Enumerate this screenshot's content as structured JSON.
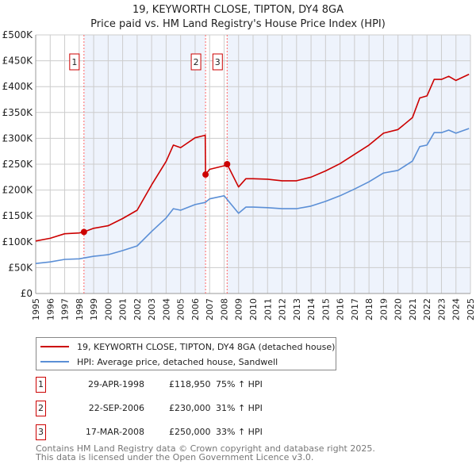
{
  "title": "19, KEYWORTH CLOSE, TIPTON, DY4 8GA",
  "subtitle": "Price paid vs. HM Land Registry's House Price Index (HPI)",
  "colors": {
    "property": "#cc0000",
    "hpi": "#5b8fd6",
    "shade": "#eef3fc",
    "grid": "#cccccc",
    "marker_line": "#ff6666"
  },
  "legend": {
    "property": "19, KEYWORTH CLOSE, TIPTON, DY4 8GA (detached house)",
    "hpi": "HPI: Average price, detached house, Sandwell"
  },
  "transactions": [
    {
      "id": "1",
      "date": "29-APR-1998",
      "price": "£118,950",
      "hpi": "75% ↑ HPI",
      "x": 1998.33,
      "value": 118950
    },
    {
      "id": "2",
      "date": "22-SEP-2006",
      "price": "£230,000",
      "hpi": "31% ↑ HPI",
      "x": 2006.72,
      "value": 230000
    },
    {
      "id": "3",
      "date": "17-MAR-2008",
      "price": "£250,000",
      "hpi": "33% ↑ HPI",
      "x": 2008.21,
      "value": 250000
    }
  ],
  "footer": {
    "line1": "Contains HM Land Registry data © Crown copyright and database right 2025.",
    "line2": "This data is licensed under the Open Government Licence v3.0."
  },
  "chart_data": {
    "type": "line",
    "title": "19, KEYWORTH CLOSE, TIPTON, DY4 8GA",
    "xlim": [
      1995,
      2025
    ],
    "ylim": [
      0,
      500000
    ],
    "grid": true,
    "x_ticks": [
      "1995",
      "1996",
      "1997",
      "1998",
      "1999",
      "2000",
      "2001",
      "2002",
      "2003",
      "2004",
      "2005",
      "2006",
      "2007",
      "2008",
      "2009",
      "2010",
      "2011",
      "2012",
      "2013",
      "2014",
      "2015",
      "2016",
      "2017",
      "2018",
      "2019",
      "2020",
      "2021",
      "2022",
      "2023",
      "2024",
      "2025"
    ],
    "y_ticks": [
      {
        "v": 0,
        "label": "£0"
      },
      {
        "v": 50000,
        "label": "£50K"
      },
      {
        "v": 100000,
        "label": "£100K"
      },
      {
        "v": 150000,
        "label": "£150K"
      },
      {
        "v": 200000,
        "label": "£200K"
      },
      {
        "v": 250000,
        "label": "£250K"
      },
      {
        "v": 300000,
        "label": "£300K"
      },
      {
        "v": 350000,
        "label": "£350K"
      },
      {
        "v": 400000,
        "label": "£400K"
      },
      {
        "v": 450000,
        "label": "£450K"
      },
      {
        "v": 500000,
        "label": "£500K"
      }
    ],
    "series": [
      {
        "name": "19, KEYWORTH CLOSE, TIPTON, DY4 8GA (detached house)",
        "key": "property",
        "points": [
          [
            1995,
            101500
          ],
          [
            1996,
            106800
          ],
          [
            1997,
            115500
          ],
          [
            1998,
            117000
          ],
          [
            1998.33,
            118950
          ],
          [
            1999,
            126000
          ],
          [
            2000,
            131000
          ],
          [
            2001,
            145000
          ],
          [
            2002,
            161000
          ],
          [
            2003,
            210000
          ],
          [
            2004,
            255500
          ],
          [
            2004.5,
            287000
          ],
          [
            2005,
            282000
          ],
          [
            2006,
            301000
          ],
          [
            2006.7,
            306000
          ],
          [
            2006.72,
            230000
          ],
          [
            2007,
            240000
          ],
          [
            2008,
            247000
          ],
          [
            2008.21,
            250000
          ],
          [
            2009,
            206000
          ],
          [
            2009.5,
            222000
          ],
          [
            2010,
            222000
          ],
          [
            2011,
            221000
          ],
          [
            2012,
            218000
          ],
          [
            2013,
            218000
          ],
          [
            2014,
            225000
          ],
          [
            2015,
            237000
          ],
          [
            2016,
            251000
          ],
          [
            2017,
            269000
          ],
          [
            2018,
            287000
          ],
          [
            2019,
            310000
          ],
          [
            2020,
            317000
          ],
          [
            2021,
            340000
          ],
          [
            2021.5,
            378000
          ],
          [
            2022,
            382000
          ],
          [
            2022.5,
            414000
          ],
          [
            2023,
            414000
          ],
          [
            2023.5,
            420000
          ],
          [
            2024,
            412000
          ],
          [
            2024.9,
            424000
          ]
        ]
      },
      {
        "name": "HPI: Average price, detached house, Sandwell",
        "key": "hpi",
        "points": [
          [
            1995,
            58000
          ],
          [
            1996,
            61000
          ],
          [
            1997,
            66000
          ],
          [
            1998,
            67000
          ],
          [
            1999,
            72000
          ],
          [
            2000,
            75000
          ],
          [
            2001,
            83000
          ],
          [
            2002,
            92000
          ],
          [
            2003,
            120000
          ],
          [
            2004,
            146000
          ],
          [
            2004.5,
            164000
          ],
          [
            2005,
            161000
          ],
          [
            2006,
            172000
          ],
          [
            2006.7,
            176000
          ],
          [
            2007,
            183000
          ],
          [
            2008,
            189000
          ],
          [
            2009,
            155000
          ],
          [
            2009.5,
            167000
          ],
          [
            2010,
            167000
          ],
          [
            2011,
            166000
          ],
          [
            2012,
            164000
          ],
          [
            2013,
            164000
          ],
          [
            2014,
            169000
          ],
          [
            2015,
            178000
          ],
          [
            2016,
            189000
          ],
          [
            2017,
            202000
          ],
          [
            2018,
            216000
          ],
          [
            2019,
            233000
          ],
          [
            2020,
            238000
          ],
          [
            2021,
            256000
          ],
          [
            2021.5,
            284000
          ],
          [
            2022,
            287000
          ],
          [
            2022.5,
            311000
          ],
          [
            2023,
            311000
          ],
          [
            2023.5,
            316000
          ],
          [
            2024,
            310000
          ],
          [
            2024.9,
            319000
          ]
        ]
      }
    ]
  }
}
